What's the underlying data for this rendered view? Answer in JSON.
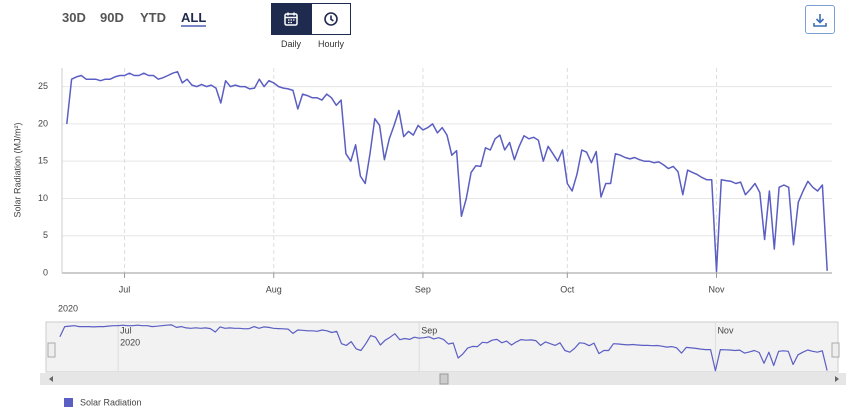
{
  "controls": {
    "ranges": [
      "30D",
      "90D",
      "YTD",
      "ALL"
    ],
    "selected_range": "ALL",
    "resolutions": [
      "Daily",
      "Hourly"
    ],
    "selected_resolution": "Daily"
  },
  "chart_data": {
    "type": "line",
    "y_label": "Solar Radiation (MJ/m²)",
    "x": [
      171,
      172,
      173,
      174,
      175,
      176,
      177,
      178,
      179,
      180,
      181,
      182,
      183,
      184,
      185,
      186,
      187,
      188,
      189,
      190,
      191,
      192,
      193,
      194,
      195,
      196,
      197,
      198,
      199,
      200,
      201,
      202,
      203,
      204,
      205,
      206,
      207,
      208,
      209,
      210,
      211,
      212,
      213,
      214,
      215,
      216,
      217,
      218,
      219,
      220,
      221,
      222,
      223,
      224,
      225,
      226,
      227,
      228,
      229,
      230,
      231,
      232,
      233,
      234,
      235,
      236,
      237,
      238,
      239,
      240,
      241,
      242,
      243,
      244,
      245,
      246,
      247,
      248,
      249,
      250,
      251,
      252,
      253,
      254,
      255,
      256,
      257,
      258,
      259,
      260,
      261,
      262,
      263,
      264,
      265,
      266,
      267,
      268,
      269,
      270,
      271,
      272,
      273,
      274,
      275,
      276,
      277,
      278,
      279,
      280,
      281,
      282,
      283,
      284,
      285,
      286,
      287,
      288,
      289,
      290,
      291,
      292,
      293,
      294,
      295,
      296,
      297,
      298,
      299,
      300,
      301,
      302,
      303,
      304,
      305,
      306,
      307,
      308,
      309,
      310,
      311,
      312,
      313,
      314,
      315,
      316,
      317,
      318,
      319,
      320,
      321,
      322,
      323,
      324,
      325,
      326,
      327,
      328,
      329
    ],
    "series": [
      {
        "name": "Solar Radiation",
        "color": "#5b5ec2",
        "values": [
          20,
          26,
          26.3,
          26.5,
          26,
          26,
          26,
          25.8,
          26,
          26,
          26.3,
          26.5,
          26.5,
          26.8,
          26.5,
          26.5,
          26.8,
          26.5,
          26.5,
          26,
          26.2,
          26.5,
          26.8,
          27,
          25.5,
          26,
          25.2,
          25,
          25.3,
          25,
          25.2,
          24.8,
          22.8,
          25.8,
          25,
          25.2,
          25,
          25,
          24.7,
          24.8,
          26,
          25,
          25.8,
          25.5,
          25,
          24.8,
          24.7,
          24.5,
          22,
          24,
          23.8,
          23.5,
          23.5,
          23.2,
          24,
          23.5,
          22.5,
          23.2,
          16,
          15,
          17.2,
          13,
          12,
          16,
          20.7,
          19.8,
          15.2,
          18,
          19.8,
          21.8,
          18.3,
          19,
          18.5,
          19.8,
          19.2,
          19.5,
          20,
          18.8,
          19.5,
          18.5,
          15.8,
          16.4,
          7.6,
          10,
          13.5,
          14.4,
          14.3,
          16.8,
          16.5,
          18,
          18.5,
          16.5,
          17.5,
          15.2,
          17,
          18.4,
          18,
          18.2,
          17.8,
          15,
          17,
          16,
          15,
          16.5,
          12,
          11,
          13.2,
          16.5,
          16.2,
          14.8,
          16.3,
          10.2,
          12,
          12,
          16,
          15.8,
          15.5,
          15.3,
          15.5,
          15.2,
          15,
          15,
          14.8,
          14.9,
          14.5,
          14,
          14.3,
          13.6,
          10.5,
          13.8,
          13.5,
          13.2,
          12.8,
          12.5,
          12.5,
          0.2,
          12.5,
          12.4,
          12.3,
          12,
          12.2,
          10.5,
          11.2,
          12,
          10.8,
          4.5,
          11,
          3.2,
          11.5,
          11.8,
          11.5,
          3.8,
          9.5,
          11,
          12.3,
          11.5,
          11,
          11.8,
          0.3
        ]
      }
    ],
    "xlim": [
      170,
      330
    ],
    "ylim": [
      0,
      27.5
    ],
    "xticks": [
      {
        "value": 183,
        "label": "Jul"
      },
      {
        "value": 214,
        "label": "Aug"
      },
      {
        "value": 245,
        "label": "Sep"
      },
      {
        "value": 275,
        "label": "Oct"
      },
      {
        "value": 306,
        "label": "Nov"
      }
    ],
    "yticks": [
      0,
      5,
      10,
      15,
      20,
      25
    ],
    "grid": true,
    "navigator": {
      "year_label": "2020",
      "xticks": [
        {
          "value": 183,
          "label": "Jul"
        },
        {
          "value": 245,
          "label": "Sep"
        },
        {
          "value": 306,
          "label": "Nov"
        }
      ]
    }
  }
}
